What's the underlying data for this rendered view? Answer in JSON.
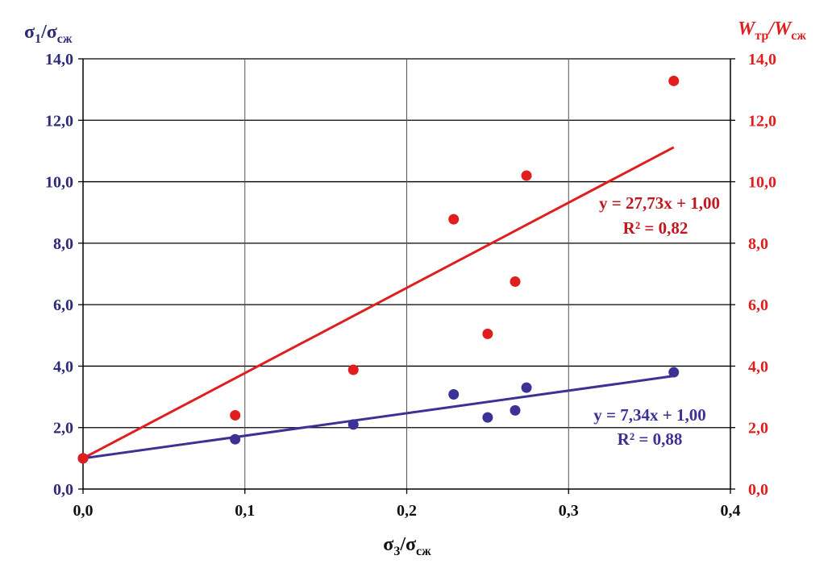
{
  "chart_data": {
    "type": "scatter",
    "title": "",
    "xlabel_main": "σ",
    "xlabel_sub": "3",
    "xlabel_slash": "/σ",
    "xlabel_sub2": "сж",
    "ylabel_left_main": "σ",
    "ylabel_left_sub": "1",
    "ylabel_left_slash": "/σ",
    "ylabel_left_sub2": "сж",
    "ylabel_right_main": "W",
    "ylabel_right_sub": "тр",
    "ylabel_right_slash": "/W",
    "ylabel_right_sub2": "сж",
    "xlim": [
      0,
      0.4
    ],
    "ylim": [
      0,
      14
    ],
    "x_ticks": [
      0,
      0.1,
      0.2,
      0.3,
      0.4
    ],
    "x_tick_labels": [
      "0,0",
      "0,1",
      "0,2",
      "0,3",
      "0,4"
    ],
    "y_ticks": [
      0,
      2,
      4,
      6,
      8,
      10,
      12,
      14
    ],
    "y_tick_labels": [
      "0,0",
      "2,0",
      "4,0",
      "6,0",
      "8,0",
      "10,0",
      "12,0",
      "14,0"
    ],
    "grid": true,
    "colors": {
      "blue": "#3c3296",
      "red": "#e01e1e",
      "grid": "#000000",
      "axis_left": "#2e2a7a",
      "axis_right": "#e01e1e"
    },
    "series": [
      {
        "name": "sigma1_over_sigma_szh",
        "axis": "left",
        "color": "#3c3296",
        "points": [
          [
            0.0,
            1.0
          ],
          [
            0.094,
            1.62
          ],
          [
            0.167,
            2.1
          ],
          [
            0.229,
            3.08
          ],
          [
            0.25,
            2.33
          ],
          [
            0.267,
            2.56
          ],
          [
            0.274,
            3.3
          ],
          [
            0.365,
            3.8
          ]
        ],
        "trend": {
          "slope": 7.34,
          "intercept": 1.0,
          "x_range": [
            0,
            0.365
          ],
          "equation": "y = 7,34x + 1,00",
          "r2": "R² = 0,88"
        }
      },
      {
        "name": "W_tr_over_W_szh",
        "axis": "right",
        "color": "#e01e1e",
        "points": [
          [
            0.0,
            1.0
          ],
          [
            0.094,
            2.4
          ],
          [
            0.167,
            3.88
          ],
          [
            0.229,
            8.78
          ],
          [
            0.25,
            5.05
          ],
          [
            0.267,
            6.75
          ],
          [
            0.274,
            10.2
          ],
          [
            0.365,
            13.28
          ]
        ],
        "trend": {
          "slope": 27.73,
          "intercept": 1.0,
          "x_range": [
            0,
            0.365
          ],
          "equation": "y = 27,73x + 1,00",
          "r2": "R² = 0,82"
        }
      }
    ]
  }
}
